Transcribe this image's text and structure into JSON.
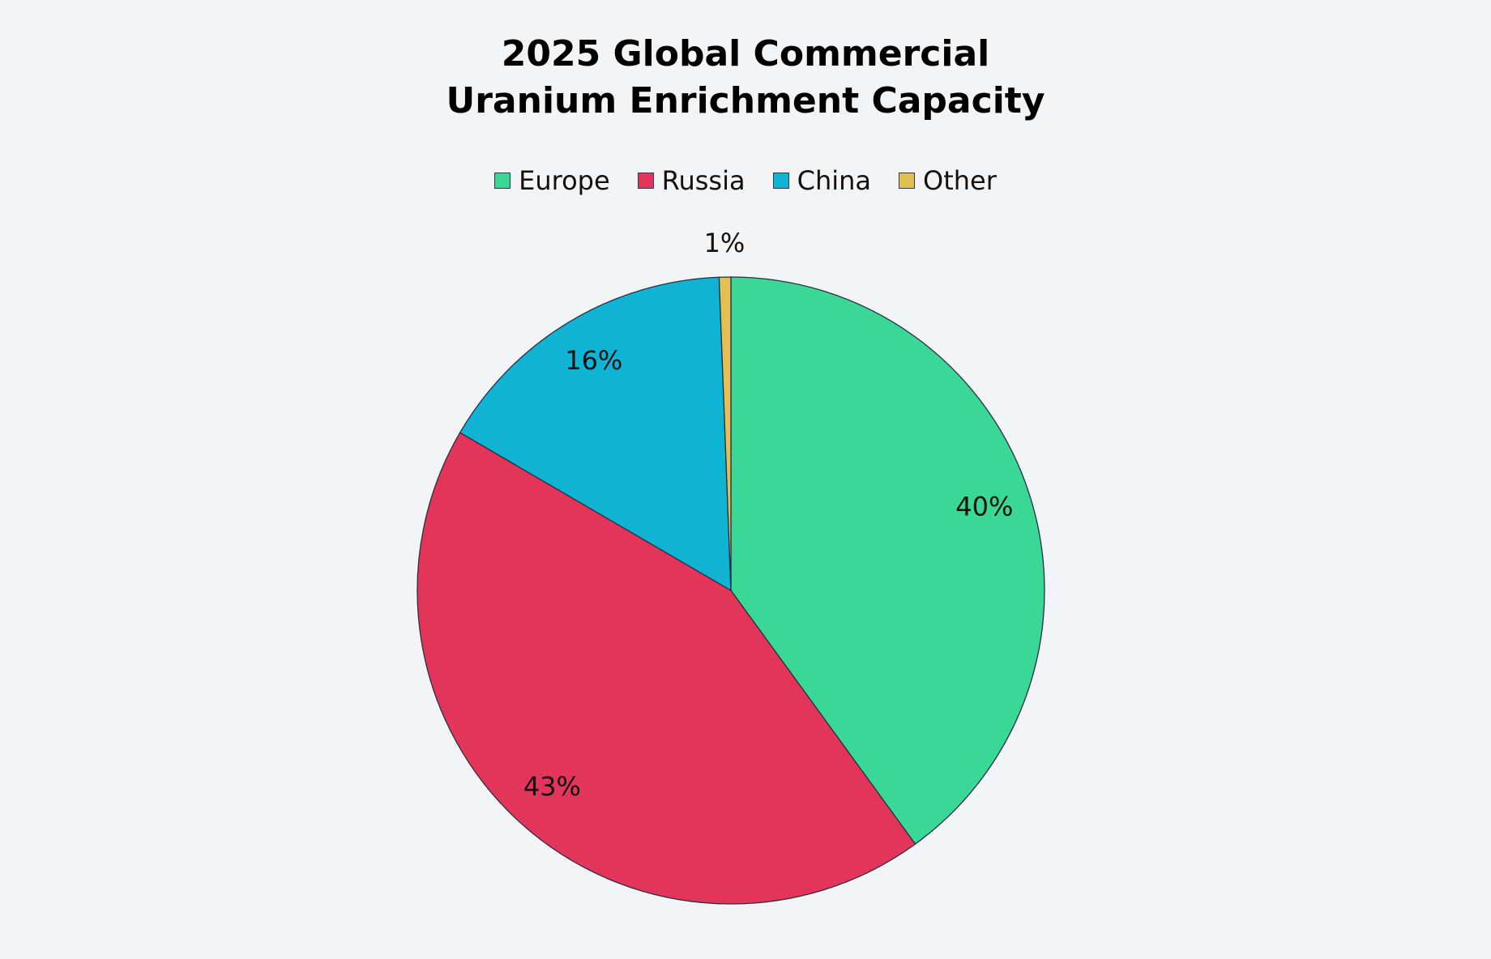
{
  "chart_data": {
    "type": "pie",
    "title_lines": [
      "2025 Global Commercial",
      "Uranium Enrichment Capacity"
    ],
    "legend_placement": "top",
    "start_angle": "12 o'clock, clockwise",
    "slices": [
      {
        "name": "Europe",
        "value": 40,
        "label": "40%",
        "color": "#3AD896"
      },
      {
        "name": "Russia",
        "value": 43.4,
        "label": "43%",
        "color": "#E3355A"
      },
      {
        "name": "China",
        "value": 16,
        "label": "16%",
        "color": "#0FB3D3"
      },
      {
        "name": "Other",
        "value": 0.6,
        "label": "1%",
        "color": "#E2C152"
      }
    ]
  }
}
